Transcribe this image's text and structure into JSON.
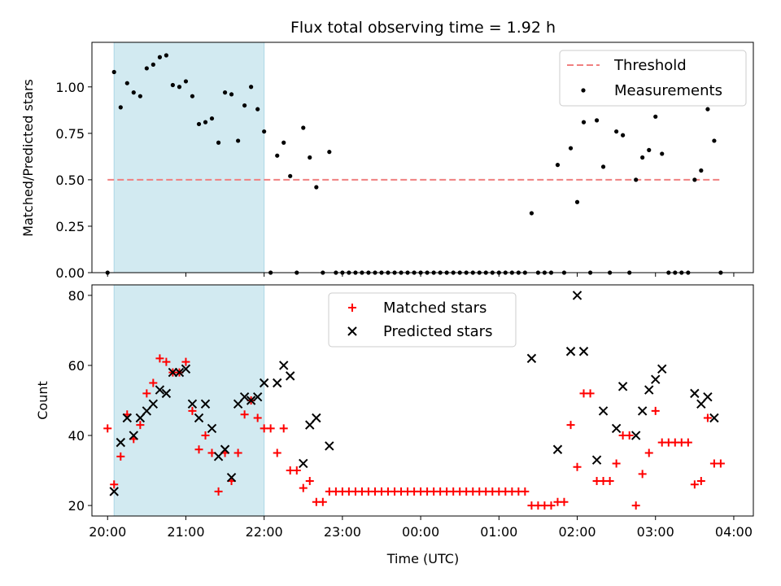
{
  "chart_data": [
    {
      "type": "scatter",
      "title": "Flux total observing time = 1.92 h",
      "ylabel": "Matched/Predicted stars",
      "xlabel": "",
      "xlim": [
        19.8,
        28.25
      ],
      "ylim": [
        0.0,
        1.24
      ],
      "yticks": [
        0.0,
        0.25,
        0.5,
        0.75,
        1.0
      ],
      "ytick_labels": [
        "0.00",
        "0.25",
        "0.50",
        "0.75",
        "1.00"
      ],
      "shaded_span": [
        20.083,
        22.0
      ],
      "shade_color": "#add8e6",
      "threshold": {
        "value": 0.5,
        "x_range": [
          20.0,
          27.85
        ],
        "color": "#f08080"
      },
      "legend_position": "upper right",
      "legend": [
        "Threshold",
        "Measurements"
      ],
      "series": [
        {
          "name": "Measurements",
          "marker": "dot",
          "color": "#000000",
          "x": [
            20.0,
            20.083,
            20.167,
            20.25,
            20.333,
            20.417,
            20.5,
            20.583,
            20.667,
            20.75,
            20.833,
            20.917,
            21.0,
            21.083,
            21.167,
            21.25,
            21.333,
            21.417,
            21.5,
            21.583,
            21.667,
            21.75,
            21.833,
            21.917,
            22.0,
            22.083,
            22.167,
            22.25,
            22.333,
            22.417,
            22.5,
            22.583,
            22.667,
            22.75,
            22.833,
            22.917,
            23.0,
            23.083,
            23.167,
            23.25,
            23.333,
            23.417,
            23.5,
            23.583,
            23.667,
            23.75,
            23.833,
            23.917,
            24.0,
            24.083,
            24.167,
            24.25,
            24.333,
            24.417,
            24.5,
            24.583,
            24.667,
            24.75,
            24.833,
            24.917,
            25.0,
            25.083,
            25.167,
            25.25,
            25.333,
            25.417,
            25.5,
            25.583,
            25.667,
            25.75,
            25.833,
            25.917,
            26.0,
            26.083,
            26.167,
            26.25,
            26.333,
            26.417,
            26.5,
            26.583,
            26.667,
            26.75,
            26.833,
            26.917,
            27.0,
            27.083,
            27.167,
            27.25,
            27.333,
            27.417,
            27.5,
            27.583,
            27.667,
            27.75,
            27.833
          ],
          "y": [
            0.0,
            1.08,
            0.89,
            1.02,
            0.97,
            0.95,
            1.1,
            1.12,
            1.16,
            1.17,
            1.01,
            1.0,
            1.03,
            0.95,
            0.8,
            0.81,
            0.83,
            0.7,
            0.97,
            0.96,
            0.71,
            0.9,
            1.0,
            0.88,
            0.76,
            0.0,
            0.63,
            0.7,
            0.52,
            0.0,
            0.78,
            0.62,
            0.46,
            0.0,
            0.65,
            0.0,
            0.0,
            0.0,
            0.0,
            0.0,
            0.0,
            0.0,
            0.0,
            0.0,
            0.0,
            0.0,
            0.0,
            0.0,
            0.0,
            0.0,
            0.0,
            0.0,
            0.0,
            0.0,
            0.0,
            0.0,
            0.0,
            0.0,
            0.0,
            0.0,
            0.0,
            0.0,
            0.0,
            0.0,
            0.0,
            0.32,
            0.0,
            0.0,
            0.0,
            0.58,
            0.0,
            0.67,
            0.38,
            0.81,
            0.0,
            0.82,
            0.57,
            0.0,
            0.76,
            0.74,
            0.0,
            0.5,
            0.62,
            0.66,
            0.84,
            0.64,
            0.0,
            0.0,
            0.0,
            0.0,
            0.5,
            0.55,
            0.88,
            0.71,
            0.0
          ]
        }
      ]
    },
    {
      "type": "scatter",
      "title": "",
      "ylabel": "Count",
      "xlabel": "Time (UTC)",
      "xlim": [
        19.8,
        28.25
      ],
      "ylim": [
        17,
        83
      ],
      "yticks": [
        20,
        40,
        60,
        80
      ],
      "ytick_labels": [
        "20",
        "40",
        "60",
        "80"
      ],
      "xticks": [
        20,
        21,
        22,
        23,
        24,
        25,
        26,
        27,
        28
      ],
      "xtick_labels": [
        "20:00",
        "21:00",
        "22:00",
        "23:00",
        "00:00",
        "01:00",
        "02:00",
        "03:00",
        "04:00"
      ],
      "shaded_span": [
        20.083,
        22.0
      ],
      "shade_color": "#add8e6",
      "legend_position": "upper center",
      "legend": [
        "Matched stars",
        "Predicted stars"
      ],
      "series": [
        {
          "name": "Matched stars",
          "marker": "plus",
          "color": "#ff0000",
          "x": [
            20.0,
            20.083,
            20.167,
            20.25,
            20.333,
            20.417,
            20.5,
            20.583,
            20.667,
            20.75,
            20.833,
            20.917,
            21.0,
            21.083,
            21.167,
            21.25,
            21.333,
            21.417,
            21.5,
            21.583,
            21.667,
            21.75,
            21.833,
            21.917,
            22.0,
            22.083,
            22.167,
            22.25,
            22.333,
            22.417,
            22.5,
            22.583,
            22.667,
            22.75,
            22.833,
            22.917,
            23.0,
            23.083,
            23.167,
            23.25,
            23.333,
            23.417,
            23.5,
            23.583,
            23.667,
            23.75,
            23.833,
            23.917,
            24.0,
            24.083,
            24.167,
            24.25,
            24.333,
            24.417,
            24.5,
            24.583,
            24.667,
            24.75,
            24.833,
            24.917,
            25.0,
            25.083,
            25.167,
            25.25,
            25.333,
            25.417,
            25.5,
            25.583,
            25.667,
            25.75,
            25.833,
            25.917,
            26.0,
            26.083,
            26.167,
            26.25,
            26.333,
            26.417,
            26.5,
            26.583,
            26.667,
            26.75,
            26.833,
            26.917,
            27.0,
            27.083,
            27.167,
            27.25,
            27.333,
            27.417,
            27.5,
            27.583,
            27.667,
            27.75,
            27.833
          ],
          "y": [
            42,
            26,
            34,
            46,
            39,
            43,
            52,
            55,
            62,
            61,
            58,
            58,
            61,
            47,
            36,
            40,
            35,
            24,
            35,
            27,
            35,
            46,
            50,
            45,
            42,
            42,
            35,
            42,
            30,
            30,
            25,
            27,
            21,
            21,
            24,
            24,
            24,
            24,
            24,
            24,
            24,
            24,
            24,
            24,
            24,
            24,
            24,
            24,
            24,
            24,
            24,
            24,
            24,
            24,
            24,
            24,
            24,
            24,
            24,
            24,
            24,
            24,
            24,
            24,
            24,
            20,
            20,
            20,
            20,
            21,
            21,
            43,
            31,
            52,
            52,
            27,
            27,
            27,
            32,
            40,
            40,
            20,
            29,
            35,
            47,
            38,
            38,
            38,
            38,
            38,
            26,
            27,
            45,
            32,
            32
          ]
        },
        {
          "name": "Predicted stars",
          "marker": "x",
          "color": "#000000",
          "x": [
            20.083,
            20.167,
            20.25,
            20.333,
            20.417,
            20.5,
            20.583,
            20.667,
            20.75,
            20.833,
            20.917,
            21.0,
            21.083,
            21.167,
            21.25,
            21.333,
            21.417,
            21.5,
            21.583,
            21.667,
            21.75,
            21.833,
            21.917,
            22.0,
            22.167,
            22.25,
            22.333,
            22.5,
            22.583,
            22.667,
            22.833,
            25.417,
            25.75,
            25.917,
            26.0,
            26.083,
            26.25,
            26.333,
            26.5,
            26.583,
            26.75,
            26.833,
            26.917,
            27.0,
            27.083,
            27.5,
            27.583,
            27.667,
            27.75
          ],
          "y": [
            24,
            38,
            45,
            40,
            45,
            47,
            49,
            53,
            52,
            58,
            58,
            59,
            49,
            45,
            49,
            42,
            34,
            36,
            28,
            49,
            51,
            50,
            51,
            55,
            55,
            60,
            57,
            32,
            43,
            45,
            37,
            62,
            36,
            64,
            80,
            64,
            33,
            47,
            42,
            54,
            40,
            47,
            53,
            56,
            59,
            52,
            49,
            51,
            45
          ]
        }
      ]
    }
  ]
}
